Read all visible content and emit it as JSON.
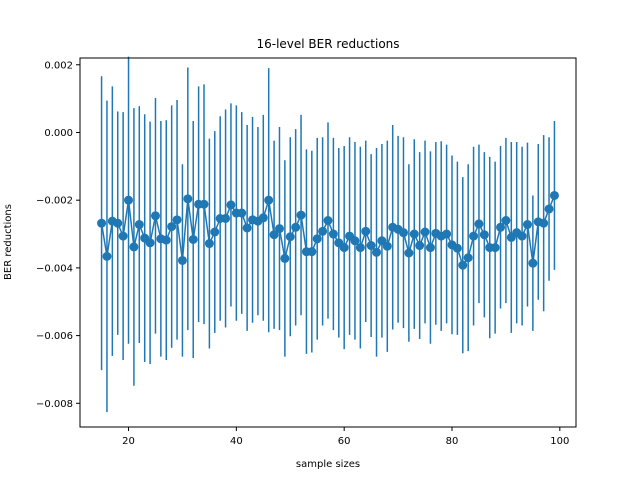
{
  "chart_data": {
    "type": "line",
    "title": "16-level BER reductions",
    "xlabel": "sample sizes",
    "ylabel": "BER reductions",
    "xlim": [
      11,
      103
    ],
    "ylim": [
      -0.0087,
      0.0022
    ],
    "xticks": [
      20,
      40,
      60,
      80,
      100
    ],
    "xtick_labels": [
      "20",
      "40",
      "60",
      "80",
      "100"
    ],
    "yticks": [
      -0.008,
      -0.006,
      -0.004,
      -0.002,
      0.0,
      0.002
    ],
    "ytick_labels": [
      "−0.008",
      "−0.006",
      "−0.004",
      "−0.002",
      "0.000",
      "0.002"
    ],
    "grid": false,
    "color": "#1f77b4",
    "series": [
      {
        "x": [
          15,
          16,
          17,
          18,
          19,
          20,
          21,
          22,
          23,
          24,
          25,
          26,
          27,
          28,
          29,
          30,
          31,
          32,
          33,
          34,
          35,
          36,
          37,
          38,
          39,
          40,
          41,
          42,
          43,
          44,
          45,
          46,
          47,
          48,
          49,
          50,
          51,
          52,
          53,
          54,
          55,
          56,
          57,
          58,
          59,
          60,
          61,
          62,
          63,
          64,
          65,
          66,
          67,
          68,
          69,
          70,
          71,
          72,
          73,
          74,
          75,
          76,
          77,
          78,
          79,
          80,
          81,
          82,
          83,
          84,
          85,
          86,
          87,
          88,
          89,
          90,
          91,
          92,
          93,
          94,
          95,
          96,
          97,
          98,
          99
        ],
        "y": [
          -0.00268,
          -0.00366,
          -0.00262,
          -0.00268,
          -0.00306,
          -0.002,
          -0.00338,
          -0.00272,
          -0.00312,
          -0.00326,
          -0.00246,
          -0.00314,
          -0.00318,
          -0.00278,
          -0.00258,
          -0.00378,
          -0.00196,
          -0.00316,
          -0.00212,
          -0.00212,
          -0.00328,
          -0.00294,
          -0.00254,
          -0.00254,
          -0.00214,
          -0.00238,
          -0.00238,
          -0.00282,
          -0.00258,
          -0.00262,
          -0.00252,
          -0.002,
          -0.00302,
          -0.00284,
          -0.00372,
          -0.00308,
          -0.0028,
          -0.00244,
          -0.00352,
          -0.00352,
          -0.00314,
          -0.00292,
          -0.0026,
          -0.003,
          -0.00326,
          -0.0034,
          -0.00306,
          -0.0032,
          -0.0034,
          -0.00292,
          -0.00334,
          -0.00354,
          -0.0032,
          -0.00336,
          -0.0028,
          -0.00286,
          -0.00296,
          -0.00356,
          -0.003,
          -0.00334,
          -0.00294,
          -0.0034,
          -0.00298,
          -0.00306,
          -0.003,
          -0.00332,
          -0.00342,
          -0.00392,
          -0.0037,
          -0.00306,
          -0.0027,
          -0.00302,
          -0.0034,
          -0.0034,
          -0.0028,
          -0.0026,
          -0.0031,
          -0.00296,
          -0.00306,
          -0.00272,
          -0.00386,
          -0.00264,
          -0.00268,
          -0.00226,
          -0.00186
        ],
        "error": [
          0.00434,
          0.0046,
          0.00398,
          0.0033,
          0.00366,
          0.00424,
          0.0041,
          0.0035,
          0.00366,
          0.00358,
          0.00348,
          0.00348,
          0.00354,
          0.00358,
          0.00354,
          0.00284,
          0.00388,
          0.0035,
          0.00348,
          0.00354,
          0.0031,
          0.00298,
          0.00302,
          0.00322,
          0.003,
          0.00318,
          0.00298,
          0.00304,
          0.00304,
          0.00278,
          0.00304,
          0.0039,
          0.00278,
          0.003,
          0.0029,
          0.00294,
          0.0029,
          0.00296,
          0.00302,
          0.00298,
          0.00298,
          0.00278,
          0.0029,
          0.00284,
          0.0028,
          0.003,
          0.00292,
          0.00292,
          0.00298,
          0.00268,
          0.0027,
          0.00308,
          0.00286,
          0.00312,
          0.00302,
          0.00276,
          0.00282,
          0.00262,
          0.0028,
          0.00276,
          0.0027,
          0.00284,
          0.0027,
          0.0028,
          0.00264,
          0.00264,
          0.00256,
          0.0026,
          0.00276,
          0.00264,
          0.00234,
          0.00244,
          0.00268,
          0.00254,
          0.0024,
          0.00244,
          0.00282,
          0.00268,
          0.00264,
          0.00242,
          0.002,
          0.0023,
          0.0026,
          0.00212,
          0.0022
        ]
      }
    ]
  }
}
